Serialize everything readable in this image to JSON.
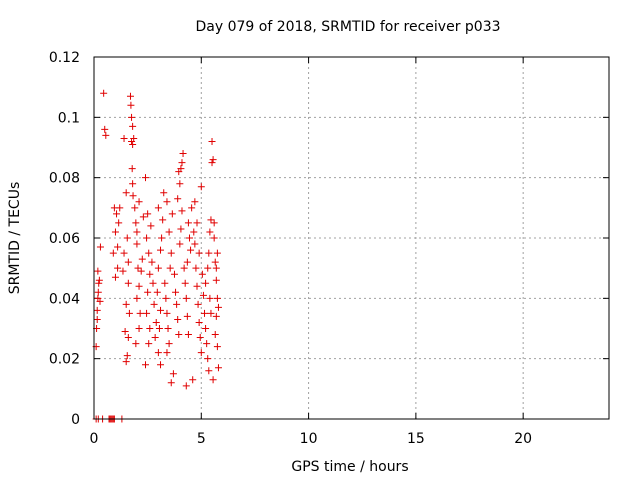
{
  "chart_data": {
    "type": "scatter",
    "title": "Day 079 of 2018, SRMTID for receiver p033",
    "xlabel": "GPS time / hours",
    "ylabel": "SRMTID / TECUs",
    "xlim": [
      0,
      24
    ],
    "ylim": [
      0,
      0.12
    ],
    "x_ticks": [
      0,
      5,
      10,
      15,
      20
    ],
    "x_tick_labels": [
      "0",
      "5",
      "10",
      "15",
      "20"
    ],
    "y_ticks": [
      0,
      0.02,
      0.04,
      0.06,
      0.08,
      0.1,
      0.12
    ],
    "y_tick_labels": [
      "0",
      "0.02",
      "0.04",
      "0.06",
      "0.08",
      "0.1",
      "0.12"
    ],
    "grid": true,
    "marker": "+",
    "series": [
      {
        "name": "SRMTID",
        "color": "#e00000",
        "points": [
          [
            0.1,
            0.024
          ],
          [
            0.12,
            0.03
          ],
          [
            0.15,
            0.033
          ],
          [
            0.18,
            0.04
          ],
          [
            0.2,
            0.042
          ],
          [
            0.22,
            0.045
          ],
          [
            0.18,
            0.049
          ],
          [
            0.25,
            0.046
          ],
          [
            0.28,
            0.039
          ],
          [
            0.3,
            0.057
          ],
          [
            0.15,
            0.036
          ],
          [
            0.45,
            0.108
          ],
          [
            0.5,
            0.096
          ],
          [
            0.55,
            0.094
          ],
          [
            0.1,
            0.0
          ],
          [
            0.2,
            0.0
          ],
          [
            0.4,
            0.0
          ],
          [
            0.7,
            0.0
          ],
          [
            0.75,
            0.0
          ],
          [
            0.8,
            0.0
          ],
          [
            0.85,
            0.0
          ],
          [
            0.9,
            0.0
          ],
          [
            0.95,
            0.0
          ],
          [
            1.3,
            0.0
          ],
          [
            0.9,
            0.055
          ],
          [
            0.95,
            0.07
          ],
          [
            1.0,
            0.062
          ],
          [
            1.05,
            0.068
          ],
          [
            1.1,
            0.05
          ],
          [
            1.0,
            0.047
          ],
          [
            1.1,
            0.057
          ],
          [
            1.2,
            0.07
          ],
          [
            1.15,
            0.065
          ],
          [
            1.4,
            0.093
          ],
          [
            1.5,
            0.075
          ],
          [
            1.55,
            0.06
          ],
          [
            1.6,
            0.045
          ],
          [
            1.5,
            0.038
          ],
          [
            1.45,
            0.029
          ],
          [
            1.55,
            0.021
          ],
          [
            1.5,
            0.019
          ],
          [
            1.6,
            0.027
          ],
          [
            1.4,
            0.055
          ],
          [
            1.35,
            0.049
          ],
          [
            1.65,
            0.035
          ],
          [
            1.6,
            0.052
          ],
          [
            1.7,
            0.107
          ],
          [
            1.72,
            0.104
          ],
          [
            1.75,
            0.1
          ],
          [
            1.8,
            0.097
          ],
          [
            1.75,
            0.092
          ],
          [
            1.8,
            0.091
          ],
          [
            1.85,
            0.093
          ],
          [
            1.78,
            0.083
          ],
          [
            1.8,
            0.078
          ],
          [
            1.82,
            0.074
          ],
          [
            1.9,
            0.07
          ],
          [
            1.95,
            0.065
          ],
          [
            2.0,
            0.058
          ],
          [
            2.05,
            0.05
          ],
          [
            2.1,
            0.044
          ],
          [
            2.0,
            0.04
          ],
          [
            2.15,
            0.035
          ],
          [
            2.1,
            0.03
          ],
          [
            1.95,
            0.025
          ],
          [
            2.2,
            0.049
          ],
          [
            2.25,
            0.053
          ],
          [
            2.0,
            0.062
          ],
          [
            2.3,
            0.067
          ],
          [
            2.1,
            0.072
          ],
          [
            2.4,
            0.08
          ],
          [
            2.5,
            0.068
          ],
          [
            2.45,
            0.06
          ],
          [
            2.55,
            0.055
          ],
          [
            2.6,
            0.048
          ],
          [
            2.5,
            0.042
          ],
          [
            2.45,
            0.035
          ],
          [
            2.6,
            0.03
          ],
          [
            2.55,
            0.025
          ],
          [
            2.4,
            0.018
          ],
          [
            2.7,
            0.052
          ],
          [
            2.65,
            0.064
          ],
          [
            2.75,
            0.045
          ],
          [
            2.8,
            0.038
          ],
          [
            2.9,
            0.032
          ],
          [
            2.85,
            0.027
          ],
          [
            3.0,
            0.022
          ],
          [
            3.05,
            0.03
          ],
          [
            3.1,
            0.036
          ],
          [
            2.95,
            0.042
          ],
          [
            3.0,
            0.05
          ],
          [
            3.1,
            0.056
          ],
          [
            3.15,
            0.06
          ],
          [
            3.2,
            0.066
          ],
          [
            3.0,
            0.07
          ],
          [
            3.25,
            0.075
          ],
          [
            3.1,
            0.018
          ],
          [
            3.3,
            0.045
          ],
          [
            3.35,
            0.04
          ],
          [
            3.4,
            0.035
          ],
          [
            3.45,
            0.03
          ],
          [
            3.5,
            0.025
          ],
          [
            3.4,
            0.022
          ],
          [
            3.55,
            0.05
          ],
          [
            3.6,
            0.055
          ],
          [
            3.5,
            0.062
          ],
          [
            3.65,
            0.068
          ],
          [
            3.4,
            0.072
          ],
          [
            3.7,
            0.015
          ],
          [
            3.6,
            0.012
          ],
          [
            3.75,
            0.048
          ],
          [
            3.8,
            0.042
          ],
          [
            3.85,
            0.038
          ],
          [
            3.9,
            0.033
          ],
          [
            3.95,
            0.028
          ],
          [
            4.0,
            0.058
          ],
          [
            4.05,
            0.063
          ],
          [
            4.1,
            0.069
          ],
          [
            3.9,
            0.073
          ],
          [
            4.0,
            0.078
          ],
          [
            4.05,
            0.083
          ],
          [
            4.1,
            0.085
          ],
          [
            4.15,
            0.088
          ],
          [
            3.95,
            0.082
          ],
          [
            4.2,
            0.05
          ],
          [
            4.25,
            0.045
          ],
          [
            4.3,
            0.04
          ],
          [
            4.35,
            0.034
          ],
          [
            4.4,
            0.028
          ],
          [
            4.3,
            0.011
          ],
          [
            4.45,
            0.06
          ],
          [
            4.5,
            0.056
          ],
          [
            4.4,
            0.065
          ],
          [
            4.55,
            0.07
          ],
          [
            4.35,
            0.052
          ],
          [
            4.6,
            0.013
          ],
          [
            4.65,
            0.062
          ],
          [
            4.7,
            0.058
          ],
          [
            4.75,
            0.05
          ],
          [
            4.8,
            0.044
          ],
          [
            4.85,
            0.038
          ],
          [
            4.9,
            0.032
          ],
          [
            4.95,
            0.027
          ],
          [
            5.0,
            0.022
          ],
          [
            4.8,
            0.065
          ],
          [
            4.9,
            0.055
          ],
          [
            5.05,
            0.048
          ],
          [
            5.1,
            0.041
          ],
          [
            5.15,
            0.035
          ],
          [
            4.7,
            0.072
          ],
          [
            5.0,
            0.077
          ],
          [
            5.2,
            0.03
          ],
          [
            5.25,
            0.025
          ],
          [
            5.3,
            0.02
          ],
          [
            5.35,
            0.016
          ],
          [
            5.2,
            0.045
          ],
          [
            5.3,
            0.05
          ],
          [
            5.35,
            0.055
          ],
          [
            5.4,
            0.062
          ],
          [
            5.45,
            0.066
          ],
          [
            5.5,
            0.085
          ],
          [
            5.55,
            0.086
          ],
          [
            5.5,
            0.092
          ],
          [
            5.4,
            0.04
          ],
          [
            5.45,
            0.035
          ],
          [
            5.6,
            0.06
          ],
          [
            5.65,
            0.052
          ],
          [
            5.7,
            0.046
          ],
          [
            5.75,
            0.04
          ],
          [
            5.7,
            0.034
          ],
          [
            5.65,
            0.028
          ],
          [
            5.75,
            0.024
          ],
          [
            5.8,
            0.017
          ],
          [
            5.6,
            0.065
          ],
          [
            5.7,
            0.05
          ],
          [
            5.75,
            0.055
          ],
          [
            5.55,
            0.013
          ],
          [
            5.8,
            0.037
          ]
        ]
      }
    ]
  }
}
